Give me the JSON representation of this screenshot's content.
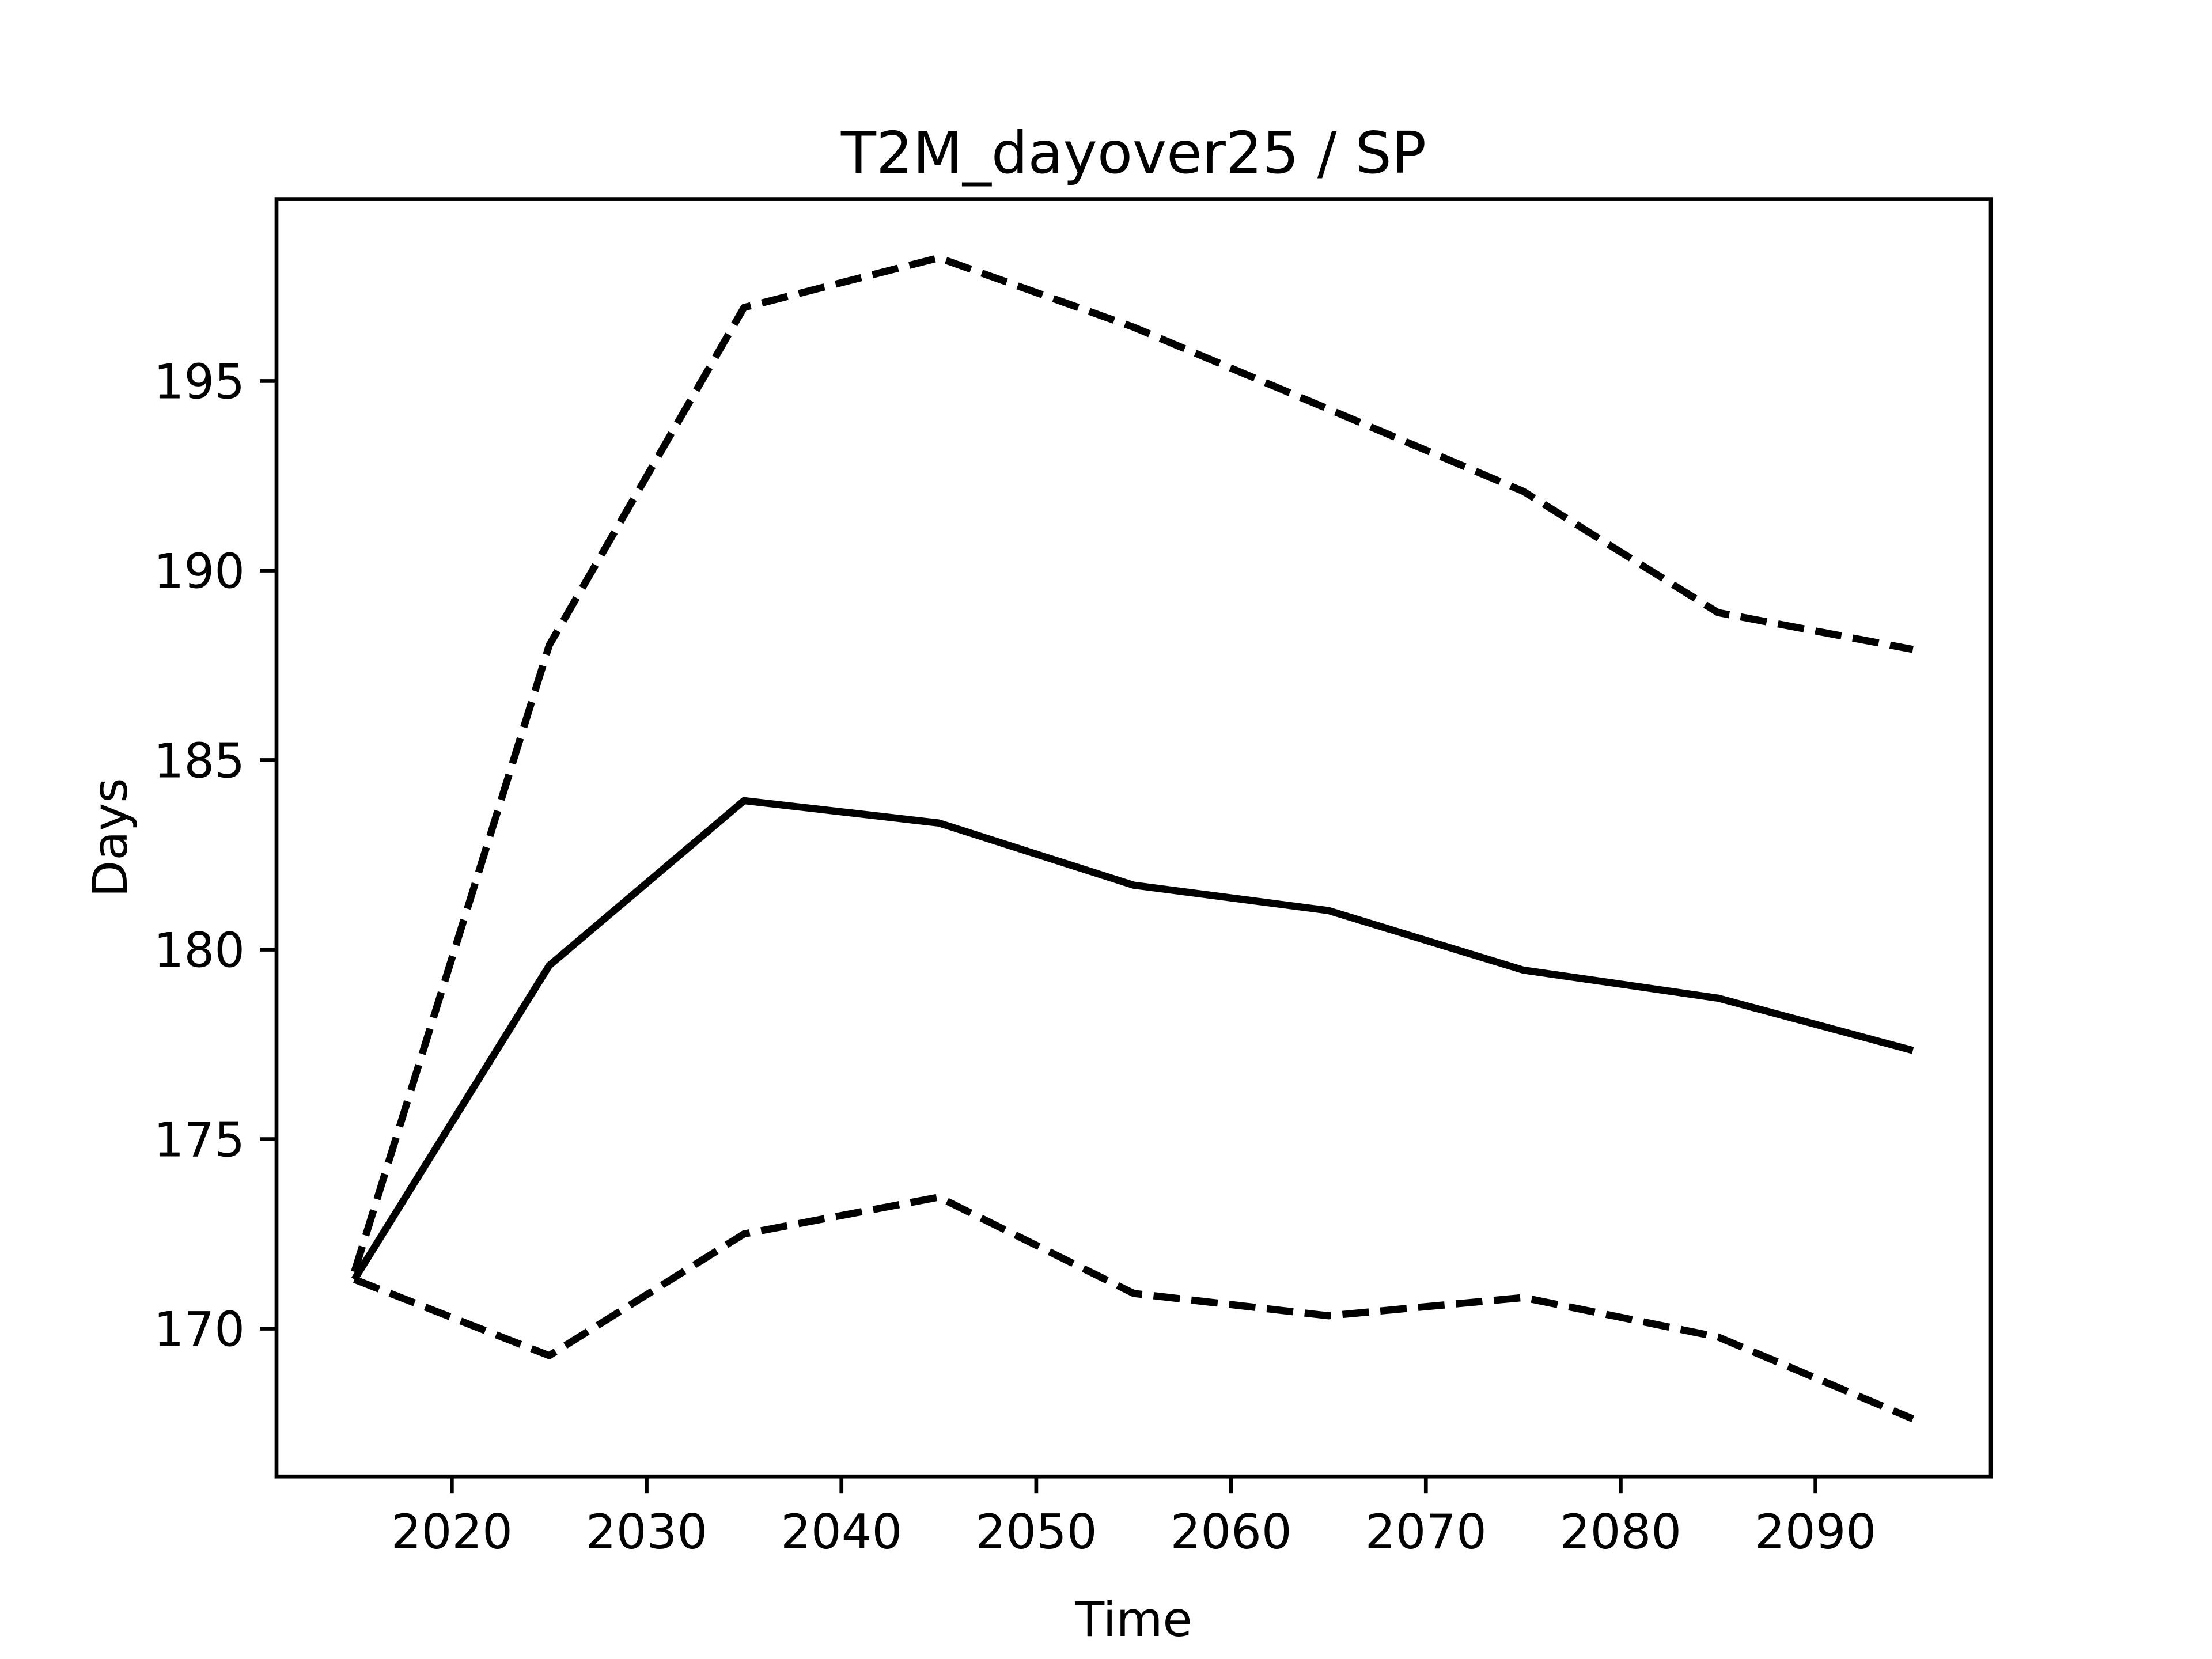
{
  "chart_data": {
    "type": "line",
    "title": "T2M_dayover25 / SP",
    "xlabel": "Time",
    "ylabel": "Days",
    "x": [
      2015,
      2025,
      2035,
      2045,
      2055,
      2065,
      2075,
      2085,
      2095
    ],
    "series": [
      {
        "color": "#000000",
        "dashed": false,
        "values": [
          171.3,
          179.58,
          183.93,
          183.34,
          181.7,
          181.03,
          179.46,
          178.72,
          177.34
        ]
      },
      {
        "color": "#000000",
        "dashed": true,
        "values": [
          171.5,
          188.03,
          196.94,
          198.25,
          196.42,
          194.26,
          192.09,
          188.89,
          187.92
        ]
      },
      {
        "color": "#000000",
        "dashed": true,
        "values": [
          171.3,
          169.29,
          172.5,
          173.47,
          170.93,
          170.34,
          170.82,
          169.78,
          167.62
        ]
      }
    ],
    "xlim": [
      2011,
      2099
    ],
    "ylim": [
      166.1,
      199.8
    ],
    "xticks": [
      2020,
      2030,
      2040,
      2050,
      2060,
      2070,
      2080,
      2090
    ],
    "yticks": [
      170,
      175,
      180,
      185,
      190,
      195
    ],
    "grid": false
  }
}
